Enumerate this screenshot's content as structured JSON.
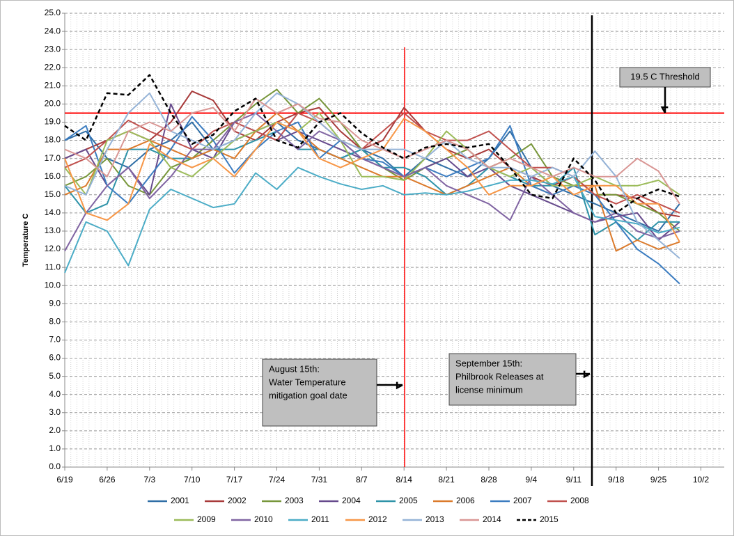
{
  "chart_data": {
    "type": "line",
    "y_label": "Temperature C",
    "categories": [
      "6/19",
      null,
      "6/26",
      null,
      "7/3",
      null,
      "7/10",
      null,
      "7/17",
      null,
      "7/24",
      null,
      "7/31",
      null,
      "8/7",
      null,
      "8/14",
      null,
      "8/21",
      null,
      "8/28",
      null,
      "9/4",
      null,
      "9/11",
      null,
      "9/18",
      null,
      "9/25",
      null,
      "10/2"
    ],
    "ylim": [
      0,
      25
    ],
    "yticks": [
      {
        "value": 0,
        "label": "0.0"
      },
      {
        "value": 1,
        "label": "1.0"
      },
      {
        "value": 2,
        "label": "2.0"
      },
      {
        "value": 3,
        "label": "3.0"
      },
      {
        "value": 4,
        "label": "4.0"
      },
      {
        "value": 5,
        "label": "5.0"
      },
      {
        "value": 6,
        "label": "6.0"
      },
      {
        "value": 7,
        "label": "7.0"
      },
      {
        "value": 8,
        "label": "8.0"
      },
      {
        "value": 9,
        "label": "9.0"
      },
      {
        "value": 10,
        "label": "10.0"
      },
      {
        "value": 11,
        "label": "11.0"
      },
      {
        "value": 12,
        "label": "12.0"
      },
      {
        "value": 13,
        "label": "13.0"
      },
      {
        "value": 14,
        "label": "14.0"
      },
      {
        "value": 15,
        "label": "15.0"
      },
      {
        "value": 16,
        "label": "16.0"
      },
      {
        "value": 17,
        "label": "17.0"
      },
      {
        "value": 18,
        "label": "18.0"
      },
      {
        "value": 19,
        "label": "19.0"
      },
      {
        "value": 20,
        "label": "20.0"
      },
      {
        "value": 21,
        "label": "21.0"
      },
      {
        "value": 22,
        "label": "22.0"
      },
      {
        "value": 23,
        "label": "23.0"
      },
      {
        "value": 24,
        "label": "24.0"
      },
      {
        "value": 25,
        "label": "25.0"
      }
    ],
    "grid": true,
    "threshold": {
      "value": 19.5,
      "label": "19.5 C Threshold",
      "color": "#ff0000"
    },
    "annotations": [
      {
        "lines": [
          "August 15th:",
          "Water Temperature",
          "mitigation goal date"
        ],
        "color": "#ff0000"
      },
      {
        "lines": [
          "September 15th:",
          "Philbrook Releases at",
          "license minimum"
        ],
        "color": "#000000"
      }
    ],
    "series": [
      {
        "name": "2001",
        "color": "#2f6ea6",
        "values": [
          18.0,
          18.5,
          17.0,
          16.5,
          17.5,
          18.0,
          19.0,
          17.5,
          18.0,
          18.5,
          19.0,
          18.0,
          17.5,
          17.0,
          17.5,
          17.0,
          16.0,
          17.0,
          16.5,
          16.0,
          17.0,
          18.5,
          16.5,
          15.5,
          15.0,
          14.5,
          14.0,
          13.5,
          13.0,
          14.5,
          null
        ]
      },
      {
        "name": "2002",
        "color": "#a83a3a",
        "values": [
          17.0,
          17.5,
          18.0,
          18.5,
          18.0,
          19.0,
          20.7,
          20.2,
          18.5,
          18.0,
          19.0,
          19.5,
          19.8,
          18.5,
          17.5,
          18.0,
          19.8,
          18.5,
          17.5,
          17.0,
          17.5,
          16.5,
          16.0,
          15.5,
          16.0,
          15.0,
          15.0,
          14.8,
          14.0,
          13.8,
          null
        ]
      },
      {
        "name": "2003",
        "color": "#77963a",
        "values": [
          15.5,
          16.0,
          17.0,
          15.5,
          15.0,
          16.5,
          17.0,
          18.0,
          19.0,
          20.0,
          20.8,
          19.5,
          20.3,
          19.0,
          17.5,
          16.5,
          15.8,
          16.5,
          17.0,
          17.5,
          16.5,
          17.0,
          17.8,
          16.0,
          15.5,
          15.0,
          15.0,
          14.5,
          14.0,
          13.0,
          null
        ]
      },
      {
        "name": "2004",
        "color": "#664a8c",
        "values": [
          17.0,
          17.5,
          15.5,
          16.5,
          15.0,
          20.0,
          17.5,
          17.0,
          19.0,
          18.5,
          18.0,
          18.5,
          18.0,
          17.5,
          17.0,
          16.5,
          16.0,
          16.5,
          17.0,
          16.0,
          16.5,
          15.5,
          15.0,
          14.5,
          14.0,
          13.5,
          13.8,
          14.0,
          12.5,
          13.5,
          null
        ]
      },
      {
        "name": "2005",
        "color": "#2e93a8",
        "values": [
          15.5,
          14.0,
          14.5,
          17.5,
          17.5,
          17.0,
          17.0,
          17.5,
          17.5,
          18.0,
          18.5,
          17.5,
          17.5,
          17.0,
          17.5,
          16.5,
          16.5,
          16.0,
          15.0,
          15.5,
          16.5,
          16.0,
          15.5,
          15.5,
          16.5,
          12.8,
          13.5,
          12.5,
          13.5,
          13.5,
          null
        ]
      },
      {
        "name": "2006",
        "color": "#db7a2b",
        "values": [
          15.0,
          15.5,
          17.5,
          17.5,
          18.0,
          17.5,
          17.0,
          17.5,
          17.0,
          18.5,
          19.5,
          18.5,
          17.5,
          17.0,
          16.5,
          16.0,
          16.0,
          15.5,
          15.0,
          15.5,
          16.0,
          16.5,
          15.5,
          15.0,
          15.5,
          15.5,
          11.9,
          12.5,
          12.0,
          12.4,
          null
        ]
      },
      {
        "name": "2007",
        "color": "#3b7cc0",
        "values": [
          18.0,
          18.8,
          15.5,
          14.5,
          16.0,
          17.5,
          19.3,
          18.0,
          16.2,
          17.5,
          18.5,
          19.0,
          17.0,
          18.0,
          17.0,
          16.8,
          16.0,
          16.5,
          16.0,
          16.5,
          17.0,
          18.8,
          15.5,
          15.0,
          15.5,
          15.0,
          13.5,
          12.0,
          11.2,
          10.1,
          null
        ]
      },
      {
        "name": "2008",
        "color": "#c0504d",
        "values": [
          16.5,
          17.0,
          18.0,
          19.1,
          18.5,
          18.0,
          17.5,
          18.5,
          19.0,
          18.5,
          18.0,
          19.5,
          19.0,
          18.0,
          17.5,
          18.5,
          19.5,
          18.5,
          18.0,
          18.0,
          18.5,
          17.5,
          16.5,
          16.5,
          16.0,
          15.0,
          14.5,
          15.0,
          14.5,
          14.0,
          null
        ]
      },
      {
        "name": "2009",
        "color": "#9bbb59",
        "values": [
          16.5,
          15.0,
          18.0,
          18.5,
          18.0,
          16.5,
          16.0,
          17.0,
          18.0,
          18.5,
          19.0,
          18.5,
          19.5,
          18.0,
          16.0,
          16.0,
          15.8,
          17.0,
          18.5,
          17.5,
          16.5,
          16.0,
          16.5,
          15.5,
          15.5,
          16.0,
          15.5,
          15.5,
          15.8,
          15.0,
          null
        ]
      },
      {
        "name": "2010",
        "color": "#8064a2",
        "values": [
          11.9,
          14.0,
          15.5,
          16.5,
          14.8,
          16.0,
          17.5,
          17.5,
          19.0,
          19.5,
          18.5,
          17.5,
          18.5,
          18.0,
          17.0,
          16.5,
          16.0,
          16.5,
          15.5,
          15.0,
          14.5,
          13.6,
          16.0,
          15.0,
          14.0,
          13.5,
          14.0,
          13.0,
          12.6,
          13.0,
          null
        ]
      },
      {
        "name": "2011",
        "color": "#4bacc6",
        "values": [
          10.7,
          13.5,
          13.0,
          11.1,
          14.2,
          15.3,
          14.8,
          14.3,
          14.5,
          16.2,
          15.3,
          16.5,
          16.0,
          15.6,
          15.3,
          15.5,
          15.0,
          15.1,
          15.0,
          15.2,
          15.5,
          15.8,
          15.8,
          15.6,
          16.0,
          13.8,
          13.6,
          13.4,
          12.9,
          13.2,
          null
        ]
      },
      {
        "name": "2012",
        "color": "#f79646",
        "values": [
          17.0,
          14.0,
          13.6,
          14.5,
          17.8,
          17.0,
          16.5,
          17.0,
          16.0,
          17.5,
          19.0,
          18.5,
          17.0,
          16.5,
          17.0,
          17.5,
          19.2,
          18.5,
          17.5,
          16.5,
          15.0,
          15.5,
          15.5,
          16.0,
          15.0,
          15.5,
          15.5,
          14.5,
          14.5,
          12.4,
          null
        ]
      },
      {
        "name": "2013",
        "color": "#95b3d7",
        "values": [
          15.5,
          15.0,
          17.5,
          19.5,
          20.6,
          18.5,
          18.0,
          17.5,
          18.0,
          19.5,
          20.6,
          20.0,
          19.0,
          18.0,
          17.5,
          17.5,
          17.5,
          17.0,
          18.0,
          17.0,
          16.5,
          16.5,
          16.0,
          16.5,
          16.0,
          17.4,
          16.0,
          13.5,
          12.5,
          11.5,
          null
        ]
      },
      {
        "name": "2014",
        "color": "#d99694",
        "values": [
          17.5,
          17.0,
          16.0,
          18.5,
          19.0,
          18.5,
          19.5,
          19.8,
          18.5,
          20.3,
          19.5,
          20.0,
          19.2,
          19.0,
          18.0,
          17.5,
          17.0,
          17.5,
          18.0,
          17.5,
          16.5,
          17.0,
          16.5,
          16.0,
          16.5,
          16.0,
          16.0,
          17.0,
          16.3,
          14.5,
          null
        ]
      },
      {
        "name": "2015",
        "color": "#000000",
        "dashed": true,
        "values": [
          18.8,
          18.0,
          20.6,
          20.5,
          21.6,
          19.5,
          17.8,
          18.3,
          19.6,
          20.3,
          18.0,
          17.6,
          19.0,
          19.5,
          18.4,
          17.6,
          17.0,
          17.6,
          17.8,
          17.6,
          17.8,
          16.5,
          15.0,
          14.8,
          17.0,
          15.8,
          14.0,
          14.8,
          15.3,
          14.9,
          null
        ]
      }
    ]
  }
}
